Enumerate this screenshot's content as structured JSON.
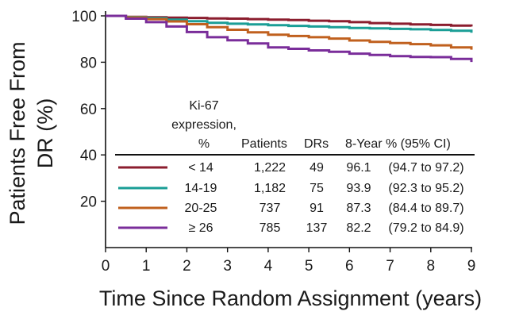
{
  "chart_data": {
    "type": "line",
    "title": "",
    "xlabel": "Time Since Random Assignment (years)",
    "ylabel_line1": "Patients Free From",
    "ylabel_line2": "DR (%)",
    "xlim": [
      0,
      9
    ],
    "ylim": [
      0,
      100
    ],
    "x_ticks": [
      "0",
      "1",
      "2",
      "3",
      "4",
      "5",
      "6",
      "7",
      "8",
      "9"
    ],
    "y_ticks": [
      "20",
      "40",
      "60",
      "80",
      "100"
    ],
    "legend": {
      "header": {
        "group_line1": "Ki-67",
        "group_line2": "expression,",
        "group_line3": "%",
        "patients": "Patients",
        "drs": "DRs",
        "rate": "8-Year % (95% CI)"
      }
    },
    "series": [
      {
        "name": "< 14",
        "patients": "1,222",
        "drs": "49",
        "rate": "96.1",
        "ci": "(94.7 to 97.2)",
        "color": "#8b1d2e",
        "points": [
          [
            0,
            100
          ],
          [
            0.5,
            99.6
          ],
          [
            1,
            99.4
          ],
          [
            1.5,
            99.2
          ],
          [
            2,
            99.1
          ],
          [
            2.5,
            98.9
          ],
          [
            3,
            98.8
          ],
          [
            3.5,
            98.6
          ],
          [
            4,
            98.4
          ],
          [
            4.5,
            98.2
          ],
          [
            5,
            97.9
          ],
          [
            5.5,
            97.7
          ],
          [
            6,
            97.3
          ],
          [
            6.5,
            96.9
          ],
          [
            7,
            96.6
          ],
          [
            7.5,
            96.3
          ],
          [
            8,
            96.1
          ],
          [
            8.5,
            95.8
          ],
          [
            9,
            95.4
          ]
        ]
      },
      {
        "name": "14-19",
        "patients": "1,182",
        "drs": "75",
        "rate": "93.9",
        "ci": "(92.3 to 95.2)",
        "color": "#1a9e96",
        "points": [
          [
            0,
            100
          ],
          [
            0.5,
            99.5
          ],
          [
            1,
            99.0
          ],
          [
            1.5,
            98.4
          ],
          [
            2,
            97.7
          ],
          [
            2.5,
            97.0
          ],
          [
            3,
            96.6
          ],
          [
            3.5,
            96.3
          ],
          [
            4,
            96.0
          ],
          [
            4.5,
            95.7
          ],
          [
            5,
            95.4
          ],
          [
            5.5,
            95.1
          ],
          [
            6,
            94.8
          ],
          [
            6.5,
            94.6
          ],
          [
            7,
            94.4
          ],
          [
            7.5,
            94.2
          ],
          [
            8,
            93.9
          ],
          [
            8.5,
            93.6
          ],
          [
            9,
            92.7
          ]
        ]
      },
      {
        "name": "20-25",
        "patients": "737",
        "drs": "91",
        "rate": "87.3",
        "ci": "(84.4 to 89.7)",
        "color": "#c0601e",
        "points": [
          [
            0,
            100
          ],
          [
            0.5,
            99.3
          ],
          [
            1,
            98.6
          ],
          [
            1.5,
            97.6
          ],
          [
            2,
            96.4
          ],
          [
            2.5,
            95.1
          ],
          [
            3,
            94.0
          ],
          [
            3.5,
            92.9
          ],
          [
            4,
            91.9
          ],
          [
            4.5,
            91.3
          ],
          [
            5,
            90.8
          ],
          [
            5.5,
            90.2
          ],
          [
            6,
            89.4
          ],
          [
            6.5,
            88.8
          ],
          [
            7,
            88.3
          ],
          [
            7.5,
            87.8
          ],
          [
            8,
            87.3
          ],
          [
            8.5,
            86.4
          ],
          [
            9,
            85.4
          ]
        ]
      },
      {
        "name": "≥ 26",
        "patients": "785",
        "drs": "137",
        "rate": "82.2",
        "ci": "(79.2 to 84.9)",
        "color": "#7a2d9a",
        "points": [
          [
            0,
            100
          ],
          [
            0.5,
            98.8
          ],
          [
            1,
            97.3
          ],
          [
            1.5,
            95.4
          ],
          [
            2,
            93.0
          ],
          [
            2.5,
            90.8
          ],
          [
            3,
            89.5
          ],
          [
            3.5,
            88.1
          ],
          [
            4,
            86.4
          ],
          [
            4.5,
            85.8
          ],
          [
            5,
            85.1
          ],
          [
            5.5,
            84.5
          ],
          [
            6,
            83.7
          ],
          [
            6.5,
            83.1
          ],
          [
            7,
            82.6
          ],
          [
            7.5,
            82.3
          ],
          [
            8,
            82.2
          ],
          [
            8.5,
            81.4
          ],
          [
            9,
            80.1
          ]
        ]
      }
    ]
  }
}
